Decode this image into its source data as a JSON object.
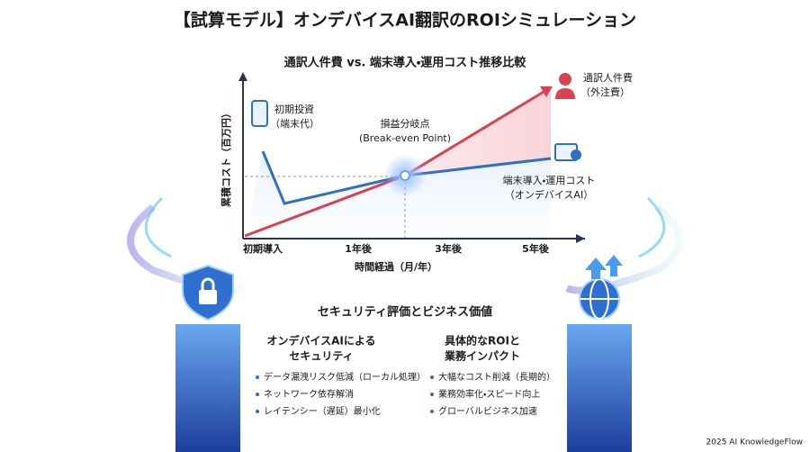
{
  "header": {
    "title": "【試算モデル】オンデバイスAI翻訳のROIシミュレーション"
  },
  "chart": {
    "title": "通訳人件費 vs. 端末導入・運用コスト推移比較",
    "y_axis_label": "累積コスト（百万円）",
    "x_axis_label": "時間経過（月/年）",
    "x_labels": [
      "初期導入",
      "1年後",
      "3年後",
      "5年後"
    ],
    "annotations": {
      "initial_investment": [
        "初期投資",
        "（端末代）"
      ],
      "break_even": [
        "損益分岐点",
        "(Break-even Point)"
      ],
      "outsourcing": [
        "通訳人件費",
        "（外注費）"
      ],
      "device": [
        "端末導入・運用コスト",
        "（オンデバイスAI）"
      ]
    }
  },
  "section": {
    "title": "セキュリティ評価とビジネス価値",
    "columns": [
      {
        "heading": [
          "オンデバイスAIによる",
          "セキュリティ"
        ],
        "items": [
          "データ漏洩リスク低減（ローカル処理）",
          "ネットワーク依存解消",
          "レイテンシー（遅延）最小化"
        ]
      },
      {
        "heading": [
          "具体的なROIと",
          "業務インパクト"
        ],
        "items": [
          "大幅なコスト削減（長期的）",
          "業務効率化・スピード向上",
          "グローバルビジネス加速"
        ]
      }
    ]
  },
  "footer": {
    "credit": "2025 AI KnowledgeFlow"
  }
}
